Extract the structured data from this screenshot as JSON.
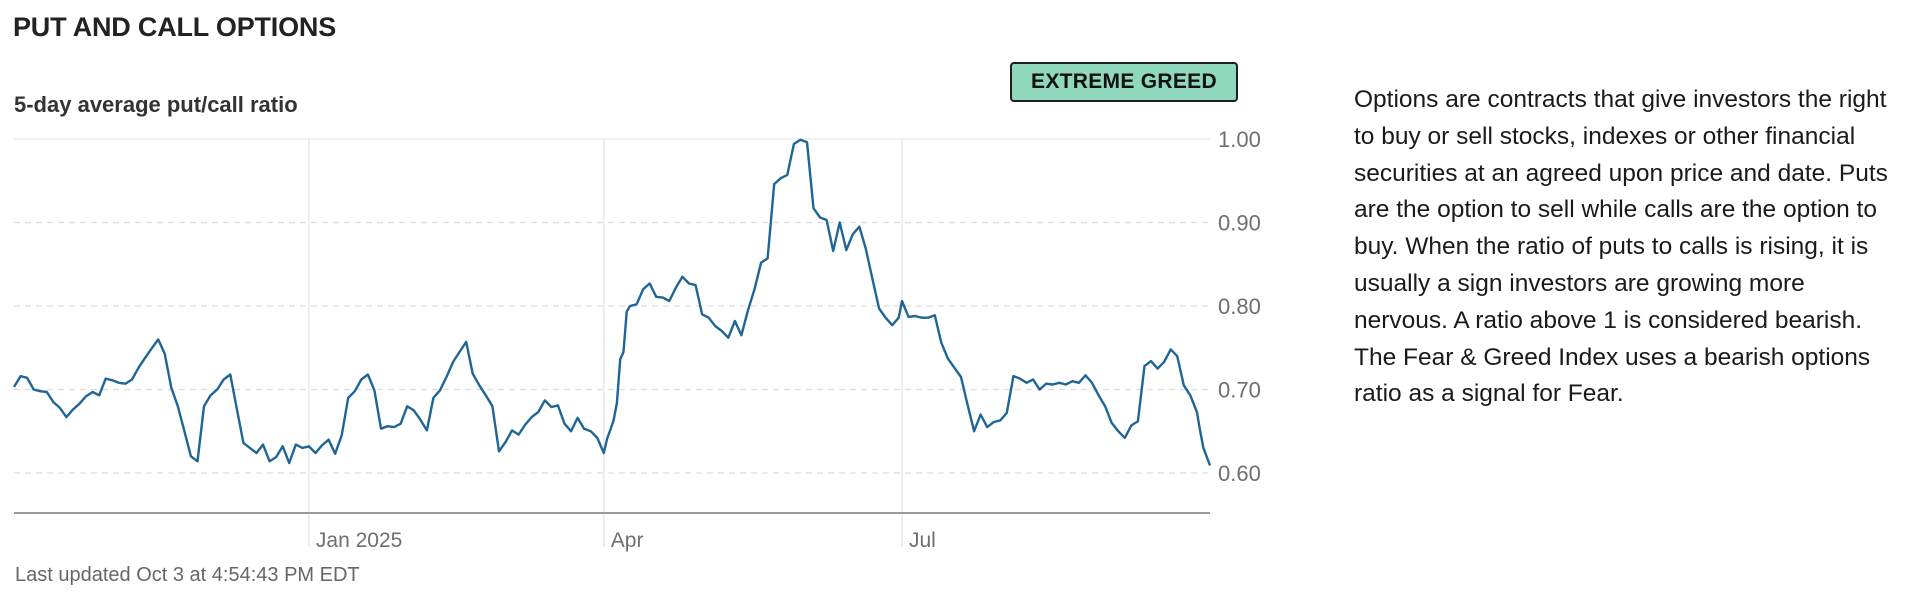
{
  "section": {
    "title": "PUT AND CALL OPTIONS"
  },
  "chart_title": "5-day average put/call ratio",
  "badge": {
    "label": "EXTREME GREED",
    "color": "#8fd7bd"
  },
  "footer": {
    "last_updated": "Last updated Oct 3 at 4:54:43 PM EDT"
  },
  "description": "Options are contracts that give investors the right to buy or sell stocks, indexes or other financial securities at an agreed upon price and date. Puts are the option to sell while calls are the option to buy. When the ratio of puts to calls is rising, it is usually a sign investors are growing more nervous. A ratio above 1 is considered bearish. The Fear & Greed Index uses a bearish options ratio as a signal for Fear.",
  "chart_data": {
    "type": "line",
    "title": "5-day average put/call ratio",
    "xlabel": "",
    "ylabel": "",
    "x_ticks": [
      {
        "label": "Jan 2025",
        "date": "2025-01-01"
      },
      {
        "label": "Apr",
        "date": "2025-04-01"
      },
      {
        "label": "Jul",
        "date": "2025-07-01"
      }
    ],
    "y_ticks": [
      {
        "label": "1.00",
        "value": 1.0
      },
      {
        "label": "0.90",
        "value": 0.9
      },
      {
        "label": "0.80",
        "value": 0.8
      },
      {
        "label": "0.70",
        "value": 0.7
      },
      {
        "label": "0.60",
        "value": 0.6
      }
    ],
    "xlim": [
      "2024-10-03",
      "2025-10-03"
    ],
    "ylim": [
      0.55,
      1.0
    ],
    "grid": true,
    "line_color": "#1f6694",
    "series": [
      {
        "points": [
          [
            "2024-10-03",
            0.703
          ],
          [
            "2024-10-05",
            0.716
          ],
          [
            "2024-10-07",
            0.714
          ],
          [
            "2024-10-09",
            0.7
          ],
          [
            "2024-10-11",
            0.698
          ],
          [
            "2024-10-13",
            0.697
          ],
          [
            "2024-10-15",
            0.685
          ],
          [
            "2024-10-17",
            0.678
          ],
          [
            "2024-10-19",
            0.667
          ],
          [
            "2024-10-21",
            0.676
          ],
          [
            "2024-10-23",
            0.683
          ],
          [
            "2024-10-25",
            0.692
          ],
          [
            "2024-10-27",
            0.697
          ],
          [
            "2024-10-29",
            0.693
          ],
          [
            "2024-10-31",
            0.713
          ],
          [
            "2024-11-02",
            0.711
          ],
          [
            "2024-11-04",
            0.708
          ],
          [
            "2024-11-06",
            0.707
          ],
          [
            "2024-11-08",
            0.712
          ],
          [
            "2024-11-10",
            0.726
          ],
          [
            "2024-11-12",
            0.738
          ],
          [
            "2024-11-14",
            0.749
          ],
          [
            "2024-11-16",
            0.76
          ],
          [
            "2024-11-18",
            0.743
          ],
          [
            "2024-11-20",
            0.702
          ],
          [
            "2024-11-22",
            0.68
          ],
          [
            "2024-11-24",
            0.65
          ],
          [
            "2024-11-26",
            0.62
          ],
          [
            "2024-11-28",
            0.614
          ],
          [
            "2024-11-30",
            0.68
          ],
          [
            "2024-12-02",
            0.693
          ],
          [
            "2024-12-04",
            0.7
          ],
          [
            "2024-12-06",
            0.712
          ],
          [
            "2024-12-08",
            0.718
          ],
          [
            "2024-12-10",
            0.677
          ],
          [
            "2024-12-12",
            0.636
          ],
          [
            "2024-12-14",
            0.63
          ],
          [
            "2024-12-16",
            0.624
          ],
          [
            "2024-12-18",
            0.634
          ],
          [
            "2024-12-20",
            0.614
          ],
          [
            "2024-12-22",
            0.619
          ],
          [
            "2024-12-24",
            0.632
          ],
          [
            "2024-12-26",
            0.612
          ],
          [
            "2024-12-28",
            0.634
          ],
          [
            "2024-12-30",
            0.63
          ],
          [
            "2025-01-01",
            0.632
          ],
          [
            "2025-01-03",
            0.624
          ],
          [
            "2025-01-05",
            0.633
          ],
          [
            "2025-01-07",
            0.64
          ],
          [
            "2025-01-09",
            0.623
          ],
          [
            "2025-01-11",
            0.645
          ],
          [
            "2025-01-13",
            0.69
          ],
          [
            "2025-01-15",
            0.698
          ],
          [
            "2025-01-17",
            0.712
          ],
          [
            "2025-01-19",
            0.718
          ],
          [
            "2025-01-21",
            0.699
          ],
          [
            "2025-01-23",
            0.653
          ],
          [
            "2025-01-25",
            0.656
          ],
          [
            "2025-01-27",
            0.655
          ],
          [
            "2025-01-29",
            0.659
          ],
          [
            "2025-01-31",
            0.68
          ],
          [
            "2025-02-02",
            0.675
          ],
          [
            "2025-02-04",
            0.664
          ],
          [
            "2025-02-06",
            0.651
          ],
          [
            "2025-02-08",
            0.69
          ],
          [
            "2025-02-10",
            0.699
          ],
          [
            "2025-02-12",
            0.715
          ],
          [
            "2025-02-14",
            0.733
          ],
          [
            "2025-02-16",
            0.745
          ],
          [
            "2025-02-18",
            0.757
          ],
          [
            "2025-02-20",
            0.719
          ],
          [
            "2025-02-22",
            0.705
          ],
          [
            "2025-02-24",
            0.693
          ],
          [
            "2025-02-26",
            0.68
          ],
          [
            "2025-02-28",
            0.626
          ],
          [
            "2025-03-02",
            0.637
          ],
          [
            "2025-03-04",
            0.651
          ],
          [
            "2025-03-06",
            0.646
          ],
          [
            "2025-03-08",
            0.658
          ],
          [
            "2025-03-10",
            0.667
          ],
          [
            "2025-03-12",
            0.673
          ],
          [
            "2025-03-14",
            0.687
          ],
          [
            "2025-03-16",
            0.679
          ],
          [
            "2025-03-18",
            0.681
          ],
          [
            "2025-03-20",
            0.659
          ],
          [
            "2025-03-22",
            0.65
          ],
          [
            "2025-03-24",
            0.666
          ],
          [
            "2025-03-26",
            0.653
          ],
          [
            "2025-03-28",
            0.65
          ],
          [
            "2025-03-30",
            0.642
          ],
          [
            "2025-04-01",
            0.624
          ],
          [
            "2025-04-02",
            0.641
          ],
          [
            "2025-04-03",
            0.652
          ],
          [
            "2025-04-04",
            0.663
          ],
          [
            "2025-04-05",
            0.684
          ],
          [
            "2025-04-06",
            0.736
          ],
          [
            "2025-04-07",
            0.745
          ],
          [
            "2025-04-08",
            0.793
          ],
          [
            "2025-04-09",
            0.8
          ],
          [
            "2025-04-11",
            0.802
          ],
          [
            "2025-04-13",
            0.82
          ],
          [
            "2025-04-15",
            0.827
          ],
          [
            "2025-04-17",
            0.811
          ],
          [
            "2025-04-19",
            0.81
          ],
          [
            "2025-04-21",
            0.806
          ],
          [
            "2025-04-23",
            0.822
          ],
          [
            "2025-04-25",
            0.835
          ],
          [
            "2025-04-27",
            0.827
          ],
          [
            "2025-04-29",
            0.825
          ],
          [
            "2025-05-01",
            0.79
          ],
          [
            "2025-05-03",
            0.786
          ],
          [
            "2025-05-05",
            0.776
          ],
          [
            "2025-05-07",
            0.77
          ],
          [
            "2025-05-09",
            0.762
          ],
          [
            "2025-05-11",
            0.782
          ],
          [
            "2025-05-13",
            0.765
          ],
          [
            "2025-05-15",
            0.795
          ],
          [
            "2025-05-17",
            0.82
          ],
          [
            "2025-05-19",
            0.852
          ],
          [
            "2025-05-21",
            0.857
          ],
          [
            "2025-05-23",
            0.946
          ],
          [
            "2025-05-25",
            0.953
          ],
          [
            "2025-05-27",
            0.957
          ],
          [
            "2025-05-29",
            0.994
          ],
          [
            "2025-05-31",
            0.999
          ],
          [
            "2025-06-02",
            0.996
          ],
          [
            "2025-06-04",
            0.917
          ],
          [
            "2025-06-06",
            0.906
          ],
          [
            "2025-06-08",
            0.903
          ],
          [
            "2025-06-10",
            0.866
          ],
          [
            "2025-06-12",
            0.9
          ],
          [
            "2025-06-14",
            0.867
          ],
          [
            "2025-06-16",
            0.886
          ],
          [
            "2025-06-18",
            0.895
          ],
          [
            "2025-06-20",
            0.868
          ],
          [
            "2025-06-22",
            0.832
          ],
          [
            "2025-06-24",
            0.797
          ],
          [
            "2025-06-26",
            0.786
          ],
          [
            "2025-06-28",
            0.777
          ],
          [
            "2025-06-30",
            0.786
          ],
          [
            "2025-07-01",
            0.806
          ],
          [
            "2025-07-03",
            0.787
          ],
          [
            "2025-07-05",
            0.788
          ],
          [
            "2025-07-07",
            0.786
          ],
          [
            "2025-07-09",
            0.786
          ],
          [
            "2025-07-11",
            0.789
          ],
          [
            "2025-07-13",
            0.756
          ],
          [
            "2025-07-15",
            0.737
          ],
          [
            "2025-07-17",
            0.726
          ],
          [
            "2025-07-19",
            0.715
          ],
          [
            "2025-07-21",
            0.682
          ],
          [
            "2025-07-23",
            0.65
          ],
          [
            "2025-07-25",
            0.67
          ],
          [
            "2025-07-27",
            0.655
          ],
          [
            "2025-07-29",
            0.661
          ],
          [
            "2025-07-31",
            0.663
          ],
          [
            "2025-08-02",
            0.672
          ],
          [
            "2025-08-04",
            0.716
          ],
          [
            "2025-08-06",
            0.713
          ],
          [
            "2025-08-08",
            0.708
          ],
          [
            "2025-08-10",
            0.712
          ],
          [
            "2025-08-12",
            0.7
          ],
          [
            "2025-08-14",
            0.707
          ],
          [
            "2025-08-16",
            0.706
          ],
          [
            "2025-08-18",
            0.708
          ],
          [
            "2025-08-20",
            0.706
          ],
          [
            "2025-08-22",
            0.71
          ],
          [
            "2025-08-24",
            0.708
          ],
          [
            "2025-08-26",
            0.717
          ],
          [
            "2025-08-28",
            0.708
          ],
          [
            "2025-08-30",
            0.693
          ],
          [
            "2025-09-01",
            0.68
          ],
          [
            "2025-09-03",
            0.66
          ],
          [
            "2025-09-05",
            0.65
          ],
          [
            "2025-09-07",
            0.642
          ],
          [
            "2025-09-09",
            0.657
          ],
          [
            "2025-09-11",
            0.662
          ],
          [
            "2025-09-13",
            0.728
          ],
          [
            "2025-09-15",
            0.734
          ],
          [
            "2025-09-17",
            0.725
          ],
          [
            "2025-09-19",
            0.733
          ],
          [
            "2025-09-21",
            0.748
          ],
          [
            "2025-09-23",
            0.74
          ],
          [
            "2025-09-25",
            0.705
          ],
          [
            "2025-09-27",
            0.693
          ],
          [
            "2025-09-29",
            0.673
          ],
          [
            "2025-09-30",
            0.65
          ],
          [
            "2025-10-01",
            0.63
          ],
          [
            "2025-10-03",
            0.609
          ]
        ]
      }
    ]
  }
}
